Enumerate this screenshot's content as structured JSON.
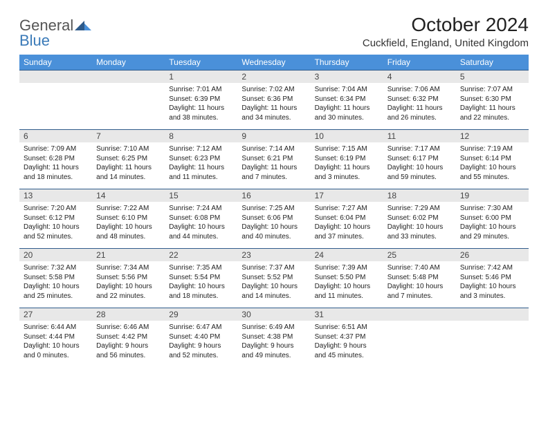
{
  "logo": {
    "part1": "General",
    "part2": "Blue"
  },
  "title": "October 2024",
  "location": "Cuckfield, England, United Kingdom",
  "colors": {
    "header_bg": "#4a90d9",
    "header_text": "#ffffff",
    "daynum_bg": "#e8e8e8",
    "row_divider": "#2e5a8a",
    "logo_gray": "#555555",
    "logo_blue": "#3a7ab8"
  },
  "weekdays": [
    "Sunday",
    "Monday",
    "Tuesday",
    "Wednesday",
    "Thursday",
    "Friday",
    "Saturday"
  ],
  "calendar_layout": {
    "rows": 5,
    "cols": 7,
    "first_day_col": 2,
    "days_in_month": 31
  },
  "days": {
    "1": {
      "sunrise": "Sunrise: 7:01 AM",
      "sunset": "Sunset: 6:39 PM",
      "daylight": "Daylight: 11 hours and 38 minutes."
    },
    "2": {
      "sunrise": "Sunrise: 7:02 AM",
      "sunset": "Sunset: 6:36 PM",
      "daylight": "Daylight: 11 hours and 34 minutes."
    },
    "3": {
      "sunrise": "Sunrise: 7:04 AM",
      "sunset": "Sunset: 6:34 PM",
      "daylight": "Daylight: 11 hours and 30 minutes."
    },
    "4": {
      "sunrise": "Sunrise: 7:06 AM",
      "sunset": "Sunset: 6:32 PM",
      "daylight": "Daylight: 11 hours and 26 minutes."
    },
    "5": {
      "sunrise": "Sunrise: 7:07 AM",
      "sunset": "Sunset: 6:30 PM",
      "daylight": "Daylight: 11 hours and 22 minutes."
    },
    "6": {
      "sunrise": "Sunrise: 7:09 AM",
      "sunset": "Sunset: 6:28 PM",
      "daylight": "Daylight: 11 hours and 18 minutes."
    },
    "7": {
      "sunrise": "Sunrise: 7:10 AM",
      "sunset": "Sunset: 6:25 PM",
      "daylight": "Daylight: 11 hours and 14 minutes."
    },
    "8": {
      "sunrise": "Sunrise: 7:12 AM",
      "sunset": "Sunset: 6:23 PM",
      "daylight": "Daylight: 11 hours and 11 minutes."
    },
    "9": {
      "sunrise": "Sunrise: 7:14 AM",
      "sunset": "Sunset: 6:21 PM",
      "daylight": "Daylight: 11 hours and 7 minutes."
    },
    "10": {
      "sunrise": "Sunrise: 7:15 AM",
      "sunset": "Sunset: 6:19 PM",
      "daylight": "Daylight: 11 hours and 3 minutes."
    },
    "11": {
      "sunrise": "Sunrise: 7:17 AM",
      "sunset": "Sunset: 6:17 PM",
      "daylight": "Daylight: 10 hours and 59 minutes."
    },
    "12": {
      "sunrise": "Sunrise: 7:19 AM",
      "sunset": "Sunset: 6:14 PM",
      "daylight": "Daylight: 10 hours and 55 minutes."
    },
    "13": {
      "sunrise": "Sunrise: 7:20 AM",
      "sunset": "Sunset: 6:12 PM",
      "daylight": "Daylight: 10 hours and 52 minutes."
    },
    "14": {
      "sunrise": "Sunrise: 7:22 AM",
      "sunset": "Sunset: 6:10 PM",
      "daylight": "Daylight: 10 hours and 48 minutes."
    },
    "15": {
      "sunrise": "Sunrise: 7:24 AM",
      "sunset": "Sunset: 6:08 PM",
      "daylight": "Daylight: 10 hours and 44 minutes."
    },
    "16": {
      "sunrise": "Sunrise: 7:25 AM",
      "sunset": "Sunset: 6:06 PM",
      "daylight": "Daylight: 10 hours and 40 minutes."
    },
    "17": {
      "sunrise": "Sunrise: 7:27 AM",
      "sunset": "Sunset: 6:04 PM",
      "daylight": "Daylight: 10 hours and 37 minutes."
    },
    "18": {
      "sunrise": "Sunrise: 7:29 AM",
      "sunset": "Sunset: 6:02 PM",
      "daylight": "Daylight: 10 hours and 33 minutes."
    },
    "19": {
      "sunrise": "Sunrise: 7:30 AM",
      "sunset": "Sunset: 6:00 PM",
      "daylight": "Daylight: 10 hours and 29 minutes."
    },
    "20": {
      "sunrise": "Sunrise: 7:32 AM",
      "sunset": "Sunset: 5:58 PM",
      "daylight": "Daylight: 10 hours and 25 minutes."
    },
    "21": {
      "sunrise": "Sunrise: 7:34 AM",
      "sunset": "Sunset: 5:56 PM",
      "daylight": "Daylight: 10 hours and 22 minutes."
    },
    "22": {
      "sunrise": "Sunrise: 7:35 AM",
      "sunset": "Sunset: 5:54 PM",
      "daylight": "Daylight: 10 hours and 18 minutes."
    },
    "23": {
      "sunrise": "Sunrise: 7:37 AM",
      "sunset": "Sunset: 5:52 PM",
      "daylight": "Daylight: 10 hours and 14 minutes."
    },
    "24": {
      "sunrise": "Sunrise: 7:39 AM",
      "sunset": "Sunset: 5:50 PM",
      "daylight": "Daylight: 10 hours and 11 minutes."
    },
    "25": {
      "sunrise": "Sunrise: 7:40 AM",
      "sunset": "Sunset: 5:48 PM",
      "daylight": "Daylight: 10 hours and 7 minutes."
    },
    "26": {
      "sunrise": "Sunrise: 7:42 AM",
      "sunset": "Sunset: 5:46 PM",
      "daylight": "Daylight: 10 hours and 3 minutes."
    },
    "27": {
      "sunrise": "Sunrise: 6:44 AM",
      "sunset": "Sunset: 4:44 PM",
      "daylight": "Daylight: 10 hours and 0 minutes."
    },
    "28": {
      "sunrise": "Sunrise: 6:46 AM",
      "sunset": "Sunset: 4:42 PM",
      "daylight": "Daylight: 9 hours and 56 minutes."
    },
    "29": {
      "sunrise": "Sunrise: 6:47 AM",
      "sunset": "Sunset: 4:40 PM",
      "daylight": "Daylight: 9 hours and 52 minutes."
    },
    "30": {
      "sunrise": "Sunrise: 6:49 AM",
      "sunset": "Sunset: 4:38 PM",
      "daylight": "Daylight: 9 hours and 49 minutes."
    },
    "31": {
      "sunrise": "Sunrise: 6:51 AM",
      "sunset": "Sunset: 4:37 PM",
      "daylight": "Daylight: 9 hours and 45 minutes."
    }
  }
}
